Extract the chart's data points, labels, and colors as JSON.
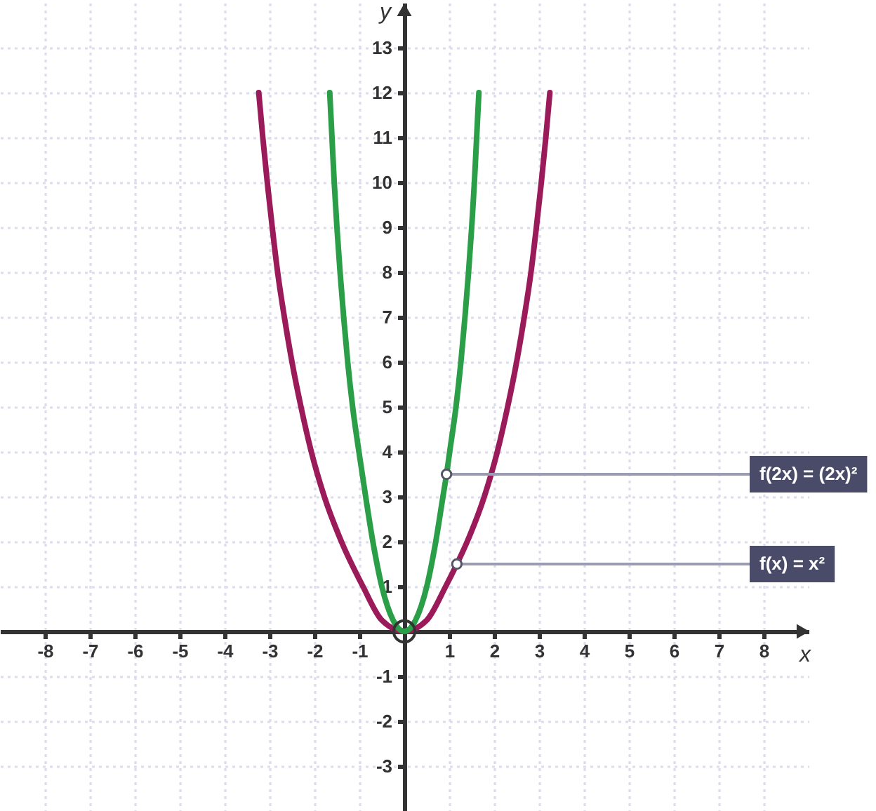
{
  "chart_data": {
    "type": "line",
    "xlabel": "x",
    "ylabel": "y",
    "xlim": [
      -9,
      9
    ],
    "ylim": [
      -4,
      14
    ],
    "xticks": [
      -8,
      -7,
      -6,
      -5,
      -4,
      -3,
      -2,
      -1,
      1,
      2,
      3,
      4,
      5,
      6,
      7,
      8
    ],
    "yticks": [
      -3,
      -2,
      -1,
      1,
      2,
      3,
      4,
      5,
      6,
      7,
      8,
      9,
      10,
      11,
      12,
      13
    ],
    "grid": true,
    "series": [
      {
        "color": "#9b1b5a",
        "x": [
          -3.24,
          -3.15,
          -3.05,
          -2.94,
          -2.82,
          -2.67,
          -2.5,
          -2.3,
          -2.07,
          -1.78,
          -1.4,
          -0.92,
          -0.5,
          0,
          0.5,
          0.92,
          1.17,
          1.4,
          1.78,
          2.07,
          2.3,
          2.5,
          2.67,
          2.82,
          2.94,
          3.05,
          3.15,
          3.24
        ],
        "values": [
          12,
          11,
          10,
          9,
          8,
          7,
          6,
          5,
          4,
          3,
          2,
          1,
          0.25,
          0,
          0.25,
          1,
          1.5,
          2,
          3,
          4,
          5,
          6,
          7,
          8,
          9,
          10,
          11,
          12
        ]
      },
      {
        "color": "#2b9e48",
        "x": [
          -1.66,
          -1.61,
          -1.56,
          -1.5,
          -1.43,
          -1.35,
          -1.26,
          -1.15,
          -1.01,
          -0.86,
          -0.7,
          -0.5,
          -0.25,
          0,
          0.25,
          0.5,
          0.7,
          0.86,
          0.94,
          1.01,
          1.15,
          1.26,
          1.35,
          1.43,
          1.5,
          1.56,
          1.61,
          1.66
        ],
        "values": [
          12,
          11,
          10,
          9,
          8,
          7,
          6,
          5,
          4,
          3,
          2,
          1,
          0.25,
          0,
          0.25,
          1,
          2,
          3,
          3.5,
          4,
          5,
          6,
          7,
          8,
          9,
          10,
          11,
          12
        ]
      },
      {
        "type": "scatter",
        "marker": "circle",
        "color": "#333333",
        "x": [
          0
        ],
        "values": [
          0
        ]
      }
    ],
    "annotations": [
      {
        "text": "f(2x) = (2x)²",
        "x": 0.94,
        "y": 3.5
      },
      {
        "text": "f(x) = x²",
        "x": 1.17,
        "y": 1.5
      }
    ]
  }
}
